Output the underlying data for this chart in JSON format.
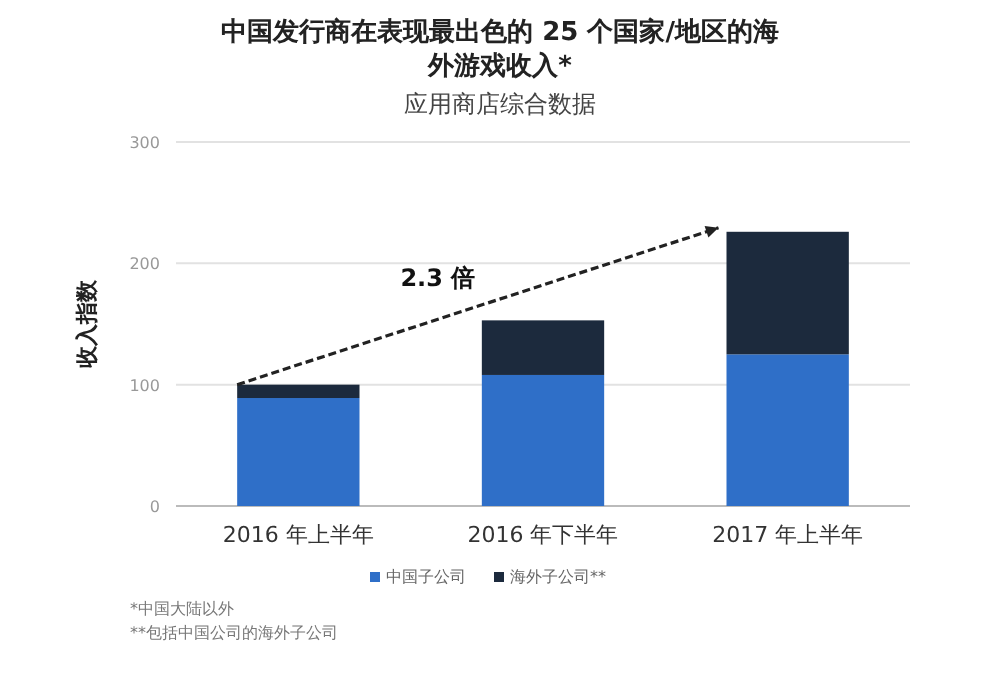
{
  "chart_data": {
    "type": "bar",
    "stacked": true,
    "title": "中国发行商在表现最出色的 25 个国家/地区的海外游戏收入*",
    "subtitle": "应用商店综合数据",
    "ylabel": "收入指数",
    "categories": [
      "2016 年上半年",
      "2016 年下半年",
      "2017 年上半年"
    ],
    "series": [
      {
        "name": "中国子公司",
        "color": "#2f6fc8",
        "values": [
          89,
          108,
          125
        ]
      },
      {
        "name": "海外子公司**",
        "color": "#1c2a3d",
        "values": [
          11,
          45,
          101
        ]
      }
    ],
    "ylim": [
      0,
      300
    ],
    "yticks": [
      0,
      100,
      200,
      300
    ],
    "grid": "y",
    "legend": "bottom",
    "annotations": [
      "2.3 倍",
      "*中国大陆以外",
      "**包括中国公司的海外子公司"
    ]
  }
}
